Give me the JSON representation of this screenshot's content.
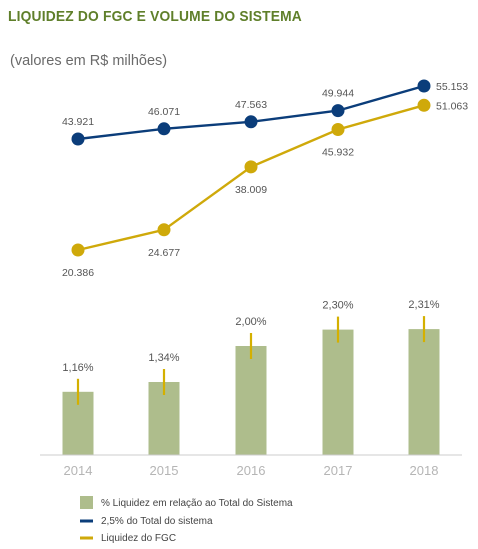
{
  "title": "LIQUIDEZ DO FGC E VOLUME DO SISTEMA",
  "subtitle": "(valores em R$ milhões)",
  "colors": {
    "title": "#5f7f2a",
    "bar": "#aebd8c",
    "error": "#d4b000",
    "sistema": "#0b3d7a",
    "fgc": "#cfa90a"
  },
  "chart_data": {
    "type": "bar+line",
    "categories": [
      "2014",
      "2015",
      "2016",
      "2017",
      "2018"
    ],
    "bars": {
      "name": "% Liquidez em relação ao Total do Sistema",
      "values": [
        1.16,
        1.34,
        2.0,
        2.3,
        2.31
      ],
      "labels": [
        "1,16%",
        "1,34%",
        "2,00%",
        "2,30%",
        "2,31%"
      ]
    },
    "lines": [
      {
        "name": "2,5% do Total do sistema",
        "values": [
          43921,
          46071,
          47563,
          49944,
          55153
        ],
        "labels": [
          "43.921",
          "46.071",
          "47.563",
          "49.944",
          "55.153"
        ]
      },
      {
        "name": "Liquidez do FGC",
        "values": [
          20386,
          24677,
          38009,
          45932,
          51063
        ],
        "labels": [
          "20.386",
          "24.677",
          "38.009",
          "45.932",
          "51.063"
        ]
      }
    ],
    "legend_position": "bottom-left",
    "grid": false
  }
}
